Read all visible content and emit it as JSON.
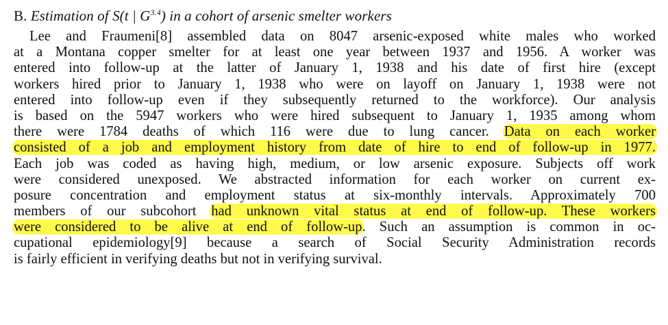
{
  "heading": {
    "letter": "B.",
    "title_main": "Estimation of S(t | G",
    "title_sup": "3.4",
    "title_rest": ") in a cohort of arsenic smelter workers"
  },
  "lines": [
    "Lee and Fraumeni[8] assembled data on 8047 arsenic-exposed white males who worked",
    "at a Montana copper smelter for at least one year between 1937 and 1956. A worker was",
    "entered into follow-up at the latter of January 1, 1938 and his date of first hire (except",
    "workers hired prior to January 1, 1938 who were on layoff on January 1, 1938 were not",
    "entered into follow-up even if they subsequently returned to the workforce). Our analysis",
    "is based on the 5947 workers who were hired subsequent to January 1, 1935 among whom",
    {
      "before": "there were 1784 deaths of which 116 were due to lung cancer. ",
      "highlight": "Data on each worker"
    },
    {
      "highlight": "consisted of a job and employment history from date of hire to end of follow-up in 1977."
    },
    "Each job was coded as having high, medium, or low arsenic exposure. Subjects off work",
    "were considered unexposed. We abstracted information for each worker on current ex-",
    "posure concentration and employment status at six-monthly intervals. Approximately 700",
    {
      "before": "members of our subcohort ",
      "highlight": "had unknown vital status at end of follow-up. These workers"
    },
    {
      "highlight": "were considered to be alive at end of follow-up",
      "after": ". Such an assumption is common in oc-"
    },
    "cupational epidemiology[9] because a search of Social Security Administration records",
    "is fairly efficient in verifying deaths but not in verifying survival."
  ],
  "highlight_color": "#fff94a"
}
